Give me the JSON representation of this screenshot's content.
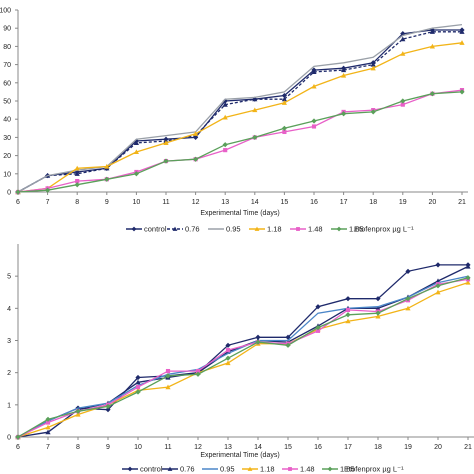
{
  "chart_data": [
    {
      "type": "line",
      "xlabel": "Experimental Time (days)",
      "ylabel": "",
      "x": [
        6,
        7,
        8,
        9,
        10,
        11,
        12,
        13,
        14,
        15,
        16,
        17,
        18,
        19,
        20,
        21
      ],
      "ylim": [
        0,
        100
      ],
      "yticks": [
        "0",
        "10",
        "20",
        "30",
        "40",
        "50",
        "60",
        "70",
        "80",
        "90",
        "100"
      ],
      "grid": false,
      "legend_position": "bottom",
      "legend_title": "Etofenprox µg L⁻¹",
      "series": [
        {
          "name": "control",
          "color": "#1f2a6b",
          "marker": "diamond",
          "dash": "solid",
          "values": [
            0,
            9,
            11,
            13,
            28,
            29,
            30,
            50,
            51,
            53,
            67,
            68,
            71,
            87,
            89,
            89
          ]
        },
        {
          "name": "0.76",
          "color": "#1f2a6b",
          "marker": "triangle",
          "dash": "dashed",
          "values": [
            0,
            9,
            10,
            13,
            27,
            28,
            31,
            48,
            51,
            51,
            66,
            67,
            70,
            84,
            88,
            88
          ]
        },
        {
          "name": "0.95",
          "color": "#9aa0a8",
          "marker": "none",
          "dash": "solid",
          "values": [
            0,
            9,
            12,
            14,
            29,
            31,
            33,
            51,
            52,
            55,
            69,
            71,
            74,
            86,
            90,
            92
          ]
        },
        {
          "name": "1.18",
          "color": "#f2b418",
          "marker": "triangle",
          "dash": "solid",
          "values": [
            0,
            2,
            13,
            14,
            22,
            27,
            32,
            41,
            45,
            49,
            58,
            64,
            68,
            76,
            80,
            82
          ]
        },
        {
          "name": "1.48",
          "color": "#e860c8",
          "marker": "square",
          "dash": "solid",
          "values": [
            0,
            2,
            6,
            7,
            11,
            17,
            18,
            23,
            30,
            33,
            36,
            44,
            45,
            48,
            54,
            56
          ]
        },
        {
          "name": "1.85",
          "color": "#5aa05a",
          "marker": "diamond",
          "dash": "solid",
          "values": [
            0,
            1,
            4,
            7,
            10,
            17,
            18,
            26,
            30,
            35,
            39,
            43,
            44,
            50,
            54,
            55
          ]
        }
      ]
    },
    {
      "type": "line",
      "xlabel": "Experimental Time (days)",
      "ylabel": "",
      "x": [
        6,
        7,
        8,
        9,
        10,
        11,
        12,
        13,
        14,
        15,
        16,
        17,
        18,
        19,
        20,
        21
      ],
      "ylim": [
        0,
        6
      ],
      "yticks": [
        "0",
        "1",
        "2",
        "3",
        "4",
        "5"
      ],
      "grid": false,
      "legend_position": "bottom",
      "legend_title": "Etofenprox µg L⁻¹",
      "series": [
        {
          "name": "control",
          "color": "#1f2a6b",
          "marker": "diamond",
          "dash": "solid",
          "values": [
            0.0,
            0.5,
            0.9,
            0.85,
            1.85,
            1.9,
            2.0,
            2.85,
            3.1,
            3.1,
            4.05,
            4.3,
            4.3,
            5.15,
            5.35,
            5.35
          ]
        },
        {
          "name": "0.76",
          "color": "#1f2a6b",
          "marker": "triangle",
          "dash": "solid",
          "values": [
            0.0,
            0.15,
            0.85,
            1.05,
            1.7,
            1.85,
            2.0,
            2.65,
            3.0,
            2.95,
            3.45,
            4.0,
            4.0,
            4.35,
            4.85,
            5.3
          ]
        },
        {
          "name": "0.95",
          "color": "#4a86c8",
          "marker": "none",
          "dash": "solid",
          "values": [
            0.0,
            0.5,
            0.9,
            1.05,
            1.6,
            1.95,
            2.1,
            2.6,
            3.0,
            3.0,
            3.85,
            4.0,
            4.05,
            4.35,
            4.8,
            5.0
          ]
        },
        {
          "name": "1.18",
          "color": "#f2b418",
          "marker": "triangle",
          "dash": "solid",
          "values": [
            0.0,
            0.3,
            0.7,
            1.0,
            1.45,
            1.55,
            2.0,
            2.3,
            2.9,
            2.9,
            3.35,
            3.6,
            3.75,
            4.0,
            4.5,
            4.8
          ]
        },
        {
          "name": "1.48",
          "color": "#e860c8",
          "marker": "square",
          "dash": "solid",
          "values": [
            0.0,
            0.45,
            0.8,
            1.0,
            1.55,
            2.05,
            2.05,
            2.7,
            2.95,
            2.9,
            3.3,
            3.95,
            3.9,
            4.25,
            4.75,
            4.9
          ]
        },
        {
          "name": "1.85",
          "color": "#5aa05a",
          "marker": "diamond",
          "dash": "solid",
          "values": [
            0.0,
            0.55,
            0.8,
            0.95,
            1.4,
            1.9,
            1.95,
            2.45,
            2.95,
            2.85,
            3.4,
            3.8,
            3.85,
            4.3,
            4.7,
            4.95
          ]
        }
      ]
    }
  ]
}
